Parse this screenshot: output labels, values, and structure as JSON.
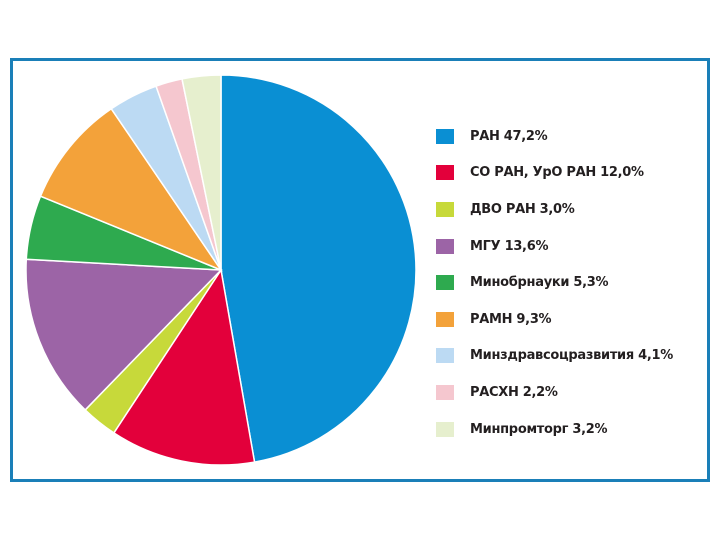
{
  "chart_data": {
    "type": "pie",
    "title": "",
    "legend_position": "right",
    "start_angle_deg": 0,
    "direction": "clockwise",
    "slices": [
      {
        "name": "РАН 47,2%",
        "value": 47.2,
        "color": "#0a8fd3"
      },
      {
        "name": "СО РАН, УрО РАН 12,0%",
        "value": 12.0,
        "color": "#e3003b"
      },
      {
        "name": "ДВО РАН 3,0%",
        "value": 3.0,
        "color": "#c7d93a"
      },
      {
        "name": "МГУ 13,6%",
        "value": 13.6,
        "color": "#9c64a6"
      },
      {
        "name": "Минобрнауки 5,3%",
        "value": 5.3,
        "color": "#2eaa4f"
      },
      {
        "name": "РАМН 9,3%",
        "value": 9.3,
        "color": "#f3a23a"
      },
      {
        "name": "Минздравсоцразвития 4,1%",
        "value": 4.1,
        "color": "#bcdaf3"
      },
      {
        "name": "РАСХН 2,2%",
        "value": 2.2,
        "color": "#f5c7cf"
      },
      {
        "name": "Минпромторг 3,2%",
        "value": 3.2,
        "color": "#e6efce"
      }
    ]
  }
}
